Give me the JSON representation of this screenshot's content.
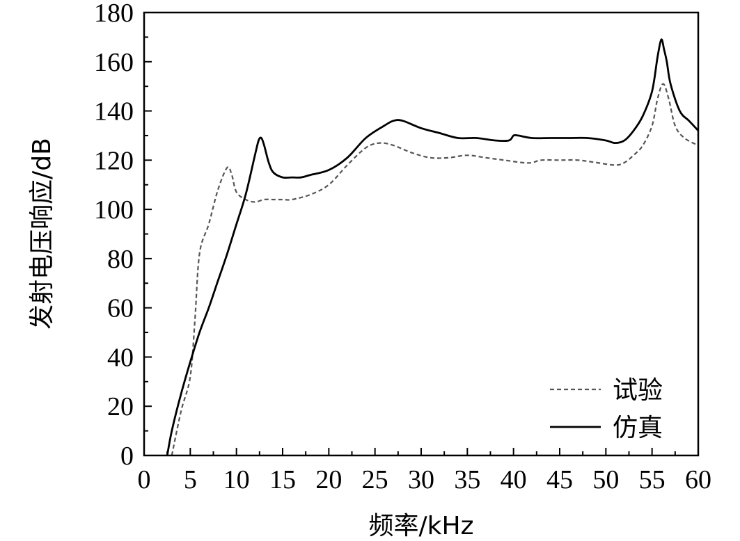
{
  "chart_data": {
    "type": "line",
    "xlabel": "频率/kHz",
    "ylabel": "发射电压响应/dB",
    "xlim": [
      0,
      60
    ],
    "ylim": [
      0,
      180
    ],
    "xticks": [
      0,
      5,
      10,
      15,
      20,
      25,
      30,
      35,
      40,
      45,
      50,
      55,
      60
    ],
    "yticks": [
      0,
      20,
      40,
      60,
      80,
      100,
      120,
      140,
      160,
      180
    ],
    "grid": false,
    "legend_position": "bottom-right",
    "series": [
      {
        "name": "试验",
        "style": "dashed",
        "color": "#555555",
        "x": [
          3.0,
          4.0,
          5.0,
          5.5,
          6.0,
          7.0,
          8.0,
          9.0,
          9.5,
          10.0,
          11.0,
          12.0,
          13.0,
          14.0,
          15.0,
          16.0,
          18.0,
          20.0,
          22.0,
          24.0,
          25.5,
          27.0,
          29.0,
          31.0,
          33.0,
          35.0,
          37.0,
          39.0,
          41.0,
          42.0,
          43.0,
          45.0,
          47.0,
          49.0,
          51.0,
          52.0,
          53.0,
          54.0,
          55.0,
          55.6,
          56.2,
          56.8,
          57.5,
          58.5,
          60.0
        ],
        "y": [
          0,
          18,
          32,
          55,
          82,
          94,
          108,
          117,
          114,
          107,
          104,
          103,
          104,
          104,
          104,
          104,
          106,
          110,
          118,
          125,
          127,
          126,
          123,
          121,
          121,
          122,
          121,
          120,
          119,
          119,
          120,
          120,
          120,
          119,
          118,
          119,
          122,
          126,
          134,
          145,
          151,
          145,
          134,
          129,
          126
        ]
      },
      {
        "name": "仿真",
        "style": "solid",
        "color": "#000000",
        "x": [
          2.5,
          3.0,
          4.0,
          5.0,
          6.0,
          7.0,
          8.0,
          9.0,
          10.0,
          11.0,
          12.0,
          12.4,
          12.7,
          13.0,
          13.5,
          14.0,
          15.0,
          16.0,
          17.0,
          18.0,
          20.0,
          22.0,
          24.0,
          26.0,
          27.0,
          28.0,
          30.0,
          32.0,
          34.0,
          36.0,
          38.0,
          39.5,
          40.0,
          40.5,
          42.0,
          44.0,
          46.0,
          48.0,
          50.0,
          51.0,
          52.0,
          53.0,
          54.0,
          55.0,
          55.6,
          56.0,
          56.3,
          56.6,
          57.0,
          58.0,
          59.0,
          60.0
        ],
        "y": [
          0,
          10,
          25,
          38,
          50,
          60,
          71,
          82,
          94,
          106,
          122,
          128,
          129,
          126,
          119,
          115,
          113,
          113,
          113,
          114,
          116,
          121,
          129,
          134,
          136,
          136,
          133,
          131,
          129,
          129,
          128,
          128,
          130,
          130,
          129,
          129,
          129,
          129,
          128,
          127,
          128,
          132,
          138,
          148,
          162,
          169,
          165,
          160,
          151,
          140,
          136,
          132
        ]
      }
    ]
  }
}
